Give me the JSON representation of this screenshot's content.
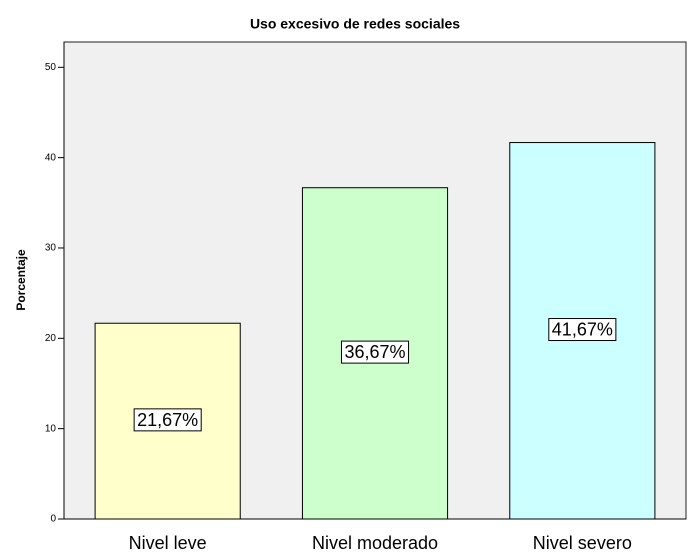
{
  "chart_data": {
    "type": "bar",
    "title": "Uso excesivo de redes sociales",
    "y_label": "Porcentaje",
    "categories": [
      "Nivel leve",
      "Nivel moderado",
      "Nivel severo"
    ],
    "values": [
      21.67,
      36.67,
      41.67
    ],
    "value_labels": [
      "21,67%",
      "36,67%",
      "41,67%"
    ],
    "colors": [
      "#ffffcc",
      "#ccffcc",
      "#ccffff"
    ],
    "ylim": [
      0,
      52.8
    ],
    "yticks": [
      0,
      10,
      20,
      30,
      40,
      50
    ],
    "grid": false
  }
}
